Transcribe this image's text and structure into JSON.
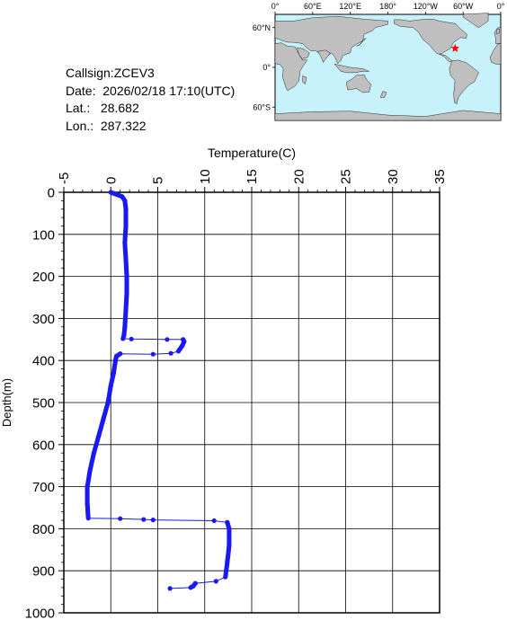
{
  "station": {
    "callsign": "Callsign:ZCEV3",
    "date": "Date:  2026/02/18 17:10(UTC)",
    "lat": "Lat.:   28.682",
    "lon": "Lon.:  287.322"
  },
  "map": {
    "lon_labels": [
      "0°",
      "60°E",
      "120°E",
      "180°",
      "120°W",
      "60°W",
      "0°"
    ],
    "lat_labels": [
      "60°N",
      "0°",
      "60°S"
    ],
    "ocean_color": "#c7f1fb",
    "land_color": "#bfbfbf",
    "marker_color": "#ff0000",
    "marker": {
      "lat": 28.682,
      "lon": 287.322
    }
  },
  "chart_data": {
    "type": "line",
    "title": "",
    "xlabel": "Temperature(C)",
    "ylabel": "Depth(m)",
    "xlim": [
      -5,
      35
    ],
    "ylim": [
      0,
      1000
    ],
    "y_inverted": true,
    "x_ticks": [
      "-5",
      "0",
      "5",
      "10",
      "15",
      "20",
      "25",
      "30",
      "35"
    ],
    "y_ticks": [
      "0",
      "100",
      "200",
      "300",
      "400",
      "500",
      "600",
      "700",
      "800",
      "900",
      "1000"
    ],
    "grid": true,
    "series_color": "#1a1aef",
    "series": [
      {
        "points": [
          [
            0.0,
            0
          ],
          [
            0.6,
            5
          ],
          [
            1.2,
            10
          ],
          [
            1.5,
            20
          ],
          [
            1.6,
            40
          ],
          [
            1.6,
            80
          ],
          [
            1.5,
            120
          ],
          [
            1.6,
            160
          ],
          [
            1.7,
            200
          ],
          [
            1.7,
            240
          ],
          [
            1.6,
            280
          ],
          [
            1.5,
            320
          ],
          [
            1.4,
            340
          ],
          [
            1.3,
            348
          ],
          [
            2.2,
            349
          ],
          [
            6.0,
            350
          ],
          [
            7.7,
            350
          ],
          [
            7.8,
            355
          ],
          [
            7.6,
            365
          ],
          [
            7.2,
            378
          ],
          [
            6.4,
            383
          ],
          [
            4.5,
            385
          ],
          [
            1.0,
            384
          ],
          [
            0.6,
            390
          ],
          [
            0.5,
            400
          ],
          [
            0.3,
            430
          ],
          [
            0.0,
            460
          ],
          [
            -0.3,
            500
          ],
          [
            -0.8,
            540
          ],
          [
            -1.3,
            580
          ],
          [
            -1.8,
            620
          ],
          [
            -2.2,
            660
          ],
          [
            -2.5,
            700
          ],
          [
            -2.5,
            740
          ],
          [
            -2.4,
            775
          ],
          [
            1.0,
            776
          ],
          [
            3.5,
            778
          ],
          [
            4.5,
            779
          ],
          [
            11.0,
            781
          ],
          [
            12.4,
            785
          ],
          [
            12.6,
            800
          ],
          [
            12.6,
            840
          ],
          [
            12.4,
            880
          ],
          [
            12.2,
            915
          ],
          [
            11.2,
            925
          ],
          [
            9.0,
            930
          ],
          [
            8.8,
            936
          ],
          [
            8.5,
            940
          ],
          [
            6.3,
            942
          ]
        ]
      }
    ]
  }
}
